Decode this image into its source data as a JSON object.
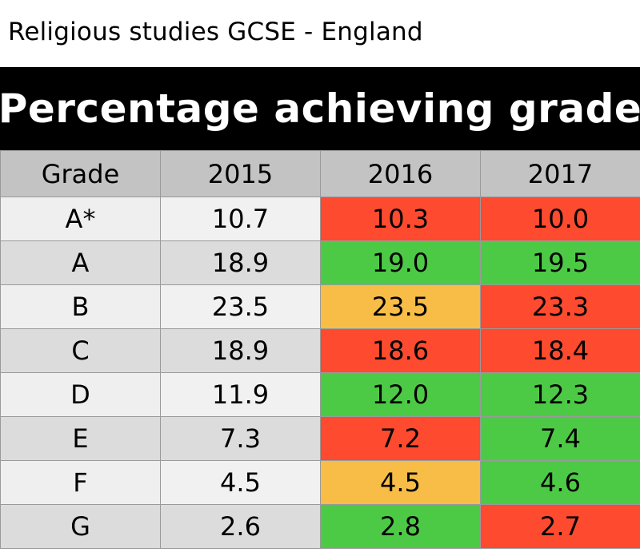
{
  "subtitle": "Religious studies GCSE - England",
  "title": "Percentage achieving grade",
  "colors": {
    "up": "#4dca45",
    "same": "#f8bd46",
    "down": "#fe4a2f",
    "banner": "#000000",
    "header": "#c3c3c3"
  },
  "chart_data": {
    "type": "table",
    "columns": [
      "Grade",
      "2015",
      "2016",
      "2017"
    ],
    "rows": [
      {
        "grade": "A*",
        "values": [
          "10.7",
          "10.3",
          "10.0"
        ],
        "status": [
          "none",
          "down",
          "down"
        ]
      },
      {
        "grade": "A",
        "values": [
          "18.9",
          "19.0",
          "19.5"
        ],
        "status": [
          "none",
          "up",
          "up"
        ]
      },
      {
        "grade": "B",
        "values": [
          "23.5",
          "23.5",
          "23.3"
        ],
        "status": [
          "none",
          "same",
          "down"
        ]
      },
      {
        "grade": "C",
        "values": [
          "18.9",
          "18.6",
          "18.4"
        ],
        "status": [
          "none",
          "down",
          "down"
        ]
      },
      {
        "grade": "D",
        "values": [
          "11.9",
          "12.0",
          "12.3"
        ],
        "status": [
          "none",
          "up",
          "up"
        ]
      },
      {
        "grade": "E",
        "values": [
          "7.3",
          "7.2",
          "7.4"
        ],
        "status": [
          "none",
          "down",
          "up"
        ]
      },
      {
        "grade": "F",
        "values": [
          "4.5",
          "4.5",
          "4.6"
        ],
        "status": [
          "none",
          "same",
          "up"
        ]
      },
      {
        "grade": "G",
        "values": [
          "2.6",
          "2.8",
          "2.7"
        ],
        "status": [
          "none",
          "up",
          "down"
        ]
      }
    ]
  }
}
